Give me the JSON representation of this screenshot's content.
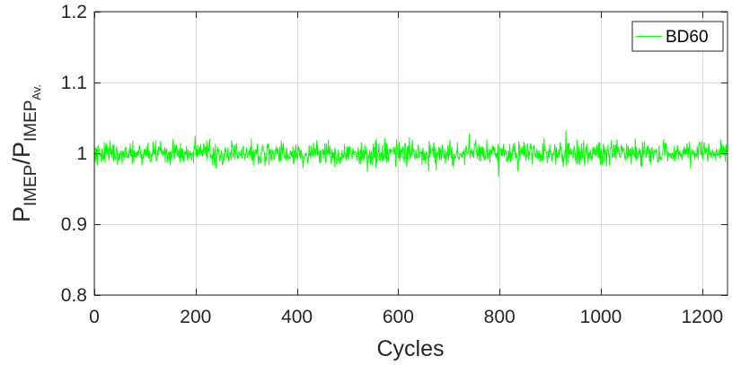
{
  "chart_data": {
    "type": "line",
    "xlabel": "Cycles",
    "ylabel": {
      "base1": "P",
      "sub1": "IMEP",
      "slash": "/P",
      "sub2": "IMEP",
      "subsub2": "Av."
    },
    "xlim": [
      0,
      1250
    ],
    "ylim": [
      0.8,
      1.2
    ],
    "xticks": [
      0,
      200,
      400,
      600,
      800,
      1000,
      1200
    ],
    "yticks": [
      0.8,
      0.9,
      1,
      1.1,
      1.2
    ],
    "xtick_labels": [
      "0",
      "200",
      "400",
      "600",
      "800",
      "1000",
      "1200"
    ],
    "ytick_labels": [
      "0.8",
      "0.9",
      "1",
      "1.1",
      "1.2"
    ],
    "grid": true,
    "legend_position": "top-right",
    "series": [
      {
        "name": "BD60",
        "color": "#00ff00",
        "x_start": 1,
        "x_step": 1,
        "count": 1250,
        "mean": 1.0,
        "std": 0.0085,
        "y_min": 0.967,
        "y_max": 1.032
      }
    ]
  }
}
